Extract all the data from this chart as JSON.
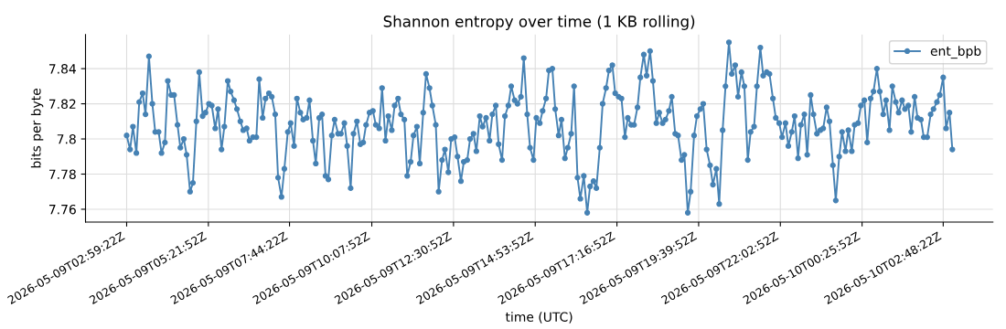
{
  "chart_data": {
    "type": "line",
    "title": "Shannon entropy over time (1 KB rolling)",
    "xlabel": "time (UTC)",
    "ylabel": "bits per byte",
    "x": [
      "2026-05-09T02:59",
      "2026-05-09T03:05",
      "2026-05-09T03:10",
      "2026-05-09T03:16",
      "2026-05-09T03:21",
      "2026-05-09T03:27",
      "2026-05-09T03:32",
      "2026-05-09T03:38",
      "2026-05-09T03:44",
      "2026-05-09T03:49",
      "2026-05-09T03:55",
      "2026-05-09T04:00",
      "2026-05-09T04:06",
      "2026-05-09T04:11",
      "2026-05-09T04:17",
      "2026-05-09T04:22",
      "2026-05-09T04:28",
      "2026-05-09T04:33",
      "2026-05-09T04:39",
      "2026-05-09T04:44",
      "2026-05-09T04:50",
      "2026-05-09T04:55",
      "2026-05-09T05:01",
      "2026-05-09T05:06",
      "2026-05-09T05:12",
      "2026-05-09T05:17",
      "2026-05-09T05:23",
      "2026-05-09T05:28",
      "2026-05-09T05:34",
      "2026-05-09T05:39",
      "2026-05-09T05:45",
      "2026-05-09T05:50",
      "2026-05-09T05:56",
      "2026-05-09T06:01",
      "2026-05-09T06:07",
      "2026-05-09T06:12",
      "2026-05-09T06:18",
      "2026-05-09T06:23",
      "2026-05-09T06:29",
      "2026-05-09T06:34",
      "2026-05-09T06:40",
      "2026-05-09T06:46",
      "2026-05-09T06:51",
      "2026-05-09T06:57",
      "2026-05-09T07:02",
      "2026-05-09T07:08",
      "2026-05-09T07:13",
      "2026-05-09T07:19",
      "2026-05-09T07:24",
      "2026-05-09T07:30",
      "2026-05-09T07:35",
      "2026-05-09T07:41",
      "2026-05-09T07:46",
      "2026-05-09T07:52",
      "2026-05-09T07:57",
      "2026-05-09T08:03",
      "2026-05-09T08:08",
      "2026-05-09T08:14",
      "2026-05-09T08:19",
      "2026-05-09T08:25",
      "2026-05-09T08:30",
      "2026-05-09T08:36",
      "2026-05-09T08:41",
      "2026-05-09T08:47",
      "2026-05-09T08:52",
      "2026-05-09T08:58",
      "2026-05-09T09:03",
      "2026-05-09T09:09",
      "2026-05-09T09:14",
      "2026-05-09T09:20",
      "2026-05-09T09:25",
      "2026-05-09T09:31",
      "2026-05-09T09:36",
      "2026-05-09T09:42",
      "2026-05-09T09:48",
      "2026-05-09T09:53",
      "2026-05-09T09:58",
      "2026-05-09T10:04",
      "2026-05-09T10:10",
      "2026-05-09T10:15",
      "2026-05-09T10:21",
      "2026-05-09T10:26",
      "2026-05-09T10:32",
      "2026-05-09T10:37",
      "2026-05-09T10:43",
      "2026-05-09T10:48",
      "2026-05-09T10:54",
      "2026-05-09T10:59",
      "2026-05-09T11:05",
      "2026-05-09T11:10",
      "2026-05-09T11:16",
      "2026-05-09T11:21",
      "2026-05-09T11:27",
      "2026-05-09T11:32",
      "2026-05-09T11:38",
      "2026-05-09T11:43",
      "2026-05-09T11:49",
      "2026-05-09T11:54",
      "2026-05-09T12:00",
      "2026-05-09T12:05",
      "2026-05-09T12:11",
      "2026-05-09T12:16",
      "2026-05-09T12:22",
      "2026-05-09T12:27",
      "2026-05-09T12:33",
      "2026-05-09T12:38",
      "2026-05-09T12:44",
      "2026-05-09T12:49",
      "2026-05-09T12:55",
      "2026-05-09T13:00",
      "2026-05-09T13:06",
      "2026-05-09T13:11",
      "2026-05-09T13:17",
      "2026-05-09T13:22",
      "2026-05-09T13:28",
      "2026-05-09T13:34",
      "2026-05-09T13:39",
      "2026-05-09T13:45",
      "2026-05-09T13:50",
      "2026-05-09T13:56",
      "2026-05-09T14:01",
      "2026-05-09T14:07",
      "2026-05-09T14:12",
      "2026-05-09T14:18",
      "2026-05-09T14:23",
      "2026-05-09T14:29",
      "2026-05-09T14:34",
      "2026-05-09T14:40",
      "2026-05-09T14:45",
      "2026-05-09T14:51",
      "2026-05-09T14:56",
      "2026-05-09T15:02",
      "2026-05-09T15:07",
      "2026-05-09T15:13",
      "2026-05-09T15:18",
      "2026-05-09T15:24",
      "2026-05-09T15:29",
      "2026-05-09T15:35",
      "2026-05-09T15:40",
      "2026-05-09T15:46",
      "2026-05-09T15:51",
      "2026-05-09T15:57",
      "2026-05-09T16:02",
      "2026-05-09T16:08",
      "2026-05-09T16:13",
      "2026-05-09T16:19",
      "2026-05-09T16:25",
      "2026-05-09T16:30",
      "2026-05-09T16:36",
      "2026-05-09T16:41",
      "2026-05-09T16:47",
      "2026-05-09T16:52",
      "2026-05-09T16:58",
      "2026-05-09T17:03",
      "2026-05-09T17:09",
      "2026-05-09T17:14",
      "2026-05-09T17:20",
      "2026-05-09T17:25",
      "2026-05-09T17:31",
      "2026-05-09T17:36",
      "2026-05-09T17:42",
      "2026-05-09T17:47",
      "2026-05-09T17:53",
      "2026-05-09T17:58",
      "2026-05-09T18:04",
      "2026-05-09T18:09",
      "2026-05-09T18:15",
      "2026-05-09T18:20",
      "2026-05-09T18:26",
      "2026-05-09T18:31",
      "2026-05-09T18:37",
      "2026-05-09T18:42",
      "2026-05-09T18:48",
      "2026-05-09T18:53",
      "2026-05-09T18:59",
      "2026-05-09T19:04",
      "2026-05-09T19:10",
      "2026-05-09T19:15",
      "2026-05-09T19:21",
      "2026-05-09T19:26",
      "2026-05-09T19:32",
      "2026-05-09T19:37",
      "2026-05-09T19:43",
      "2026-05-09T19:48",
      "2026-05-09T19:54",
      "2026-05-09T20:00",
      "2026-05-09T20:05",
      "2026-05-09T20:11",
      "2026-05-09T20:16",
      "2026-05-09T20:22",
      "2026-05-09T20:27",
      "2026-05-09T20:33",
      "2026-05-09T20:38",
      "2026-05-09T20:44",
      "2026-05-09T20:49",
      "2026-05-09T20:55",
      "2026-05-09T21:00",
      "2026-05-09T21:06",
      "2026-05-09T21:11",
      "2026-05-09T21:17",
      "2026-05-09T21:22",
      "2026-05-09T21:28",
      "2026-05-09T21:33",
      "2026-05-09T21:39",
      "2026-05-09T21:44",
      "2026-05-09T21:50",
      "2026-05-09T21:55",
      "2026-05-09T22:01",
      "2026-05-09T22:06",
      "2026-05-09T22:12",
      "2026-05-09T22:17",
      "2026-05-09T22:23",
      "2026-05-09T22:28",
      "2026-05-09T22:34",
      "2026-05-09T22:39",
      "2026-05-09T22:45",
      "2026-05-09T22:50",
      "2026-05-09T22:56",
      "2026-05-09T23:01",
      "2026-05-09T23:07",
      "2026-05-09T23:13",
      "2026-05-09T23:18",
      "2026-05-09T23:24",
      "2026-05-09T23:29",
      "2026-05-09T23:35",
      "2026-05-09T23:40",
      "2026-05-09T23:46",
      "2026-05-09T23:51",
      "2026-05-09T23:57",
      "2026-05-10T00:02",
      "2026-05-10T00:08",
      "2026-05-10T00:13",
      "2026-05-10T00:19",
      "2026-05-10T00:24",
      "2026-05-10T00:30",
      "2026-05-10T00:35",
      "2026-05-10T00:41",
      "2026-05-10T00:46",
      "2026-05-10T00:52",
      "2026-05-10T00:57",
      "2026-05-10T01:03",
      "2026-05-10T01:08",
      "2026-05-10T01:14",
      "2026-05-10T01:19",
      "2026-05-10T01:25",
      "2026-05-10T01:30",
      "2026-05-10T01:36",
      "2026-05-10T01:41",
      "2026-05-10T01:47",
      "2026-05-10T01:52",
      "2026-05-10T01:58",
      "2026-05-10T02:03",
      "2026-05-10T02:09",
      "2026-05-10T02:14",
      "2026-05-10T02:20",
      "2026-05-10T02:26",
      "2026-05-10T02:31",
      "2026-05-10T02:37",
      "2026-05-10T02:42",
      "2026-05-10T02:48",
      "2026-05-10T02:53",
      "2026-05-10T02:59",
      "2026-05-10T03:04"
    ],
    "series": [
      {
        "name": "ent_bpb",
        "color": "#4682b4",
        "values": [
          7.802,
          7.794,
          7.807,
          7.792,
          7.821,
          7.826,
          7.814,
          7.847,
          7.82,
          7.804,
          7.804,
          7.792,
          7.798,
          7.833,
          7.825,
          7.825,
          7.808,
          7.795,
          7.8,
          7.791,
          7.77,
          7.775,
          7.81,
          7.838,
          7.813,
          7.815,
          7.82,
          7.819,
          7.806,
          7.817,
          7.794,
          7.807,
          7.833,
          7.827,
          7.822,
          7.817,
          7.81,
          7.805,
          7.806,
          7.799,
          7.801,
          7.801,
          7.834,
          7.812,
          7.823,
          7.826,
          7.824,
          7.814,
          7.778,
          7.767,
          7.783,
          7.804,
          7.809,
          7.796,
          7.823,
          7.815,
          7.811,
          7.812,
          7.822,
          7.799,
          7.786,
          7.812,
          7.814,
          7.779,
          7.777,
          7.802,
          7.811,
          7.803,
          7.803,
          7.809,
          7.796,
          7.772,
          7.803,
          7.81,
          7.797,
          7.798,
          7.808,
          7.815,
          7.816,
          7.808,
          7.806,
          7.829,
          7.799,
          7.813,
          7.805,
          7.819,
          7.823,
          7.814,
          7.811,
          7.779,
          7.787,
          7.802,
          7.807,
          7.786,
          7.815,
          7.837,
          7.829,
          7.819,
          7.808,
          7.77,
          7.788,
          7.794,
          7.781,
          7.8,
          7.801,
          7.79,
          7.776,
          7.787,
          7.788,
          7.8,
          7.803,
          7.793,
          7.813,
          7.807,
          7.812,
          7.799,
          7.814,
          7.819,
          7.797,
          7.788,
          7.813,
          7.819,
          7.83,
          7.822,
          7.82,
          7.824,
          7.846,
          7.814,
          7.795,
          7.788,
          7.812,
          7.809,
          7.816,
          7.823,
          7.839,
          7.84,
          7.817,
          7.802,
          7.811,
          7.789,
          7.795,
          7.803,
          7.83,
          7.778,
          7.766,
          7.779,
          7.758,
          7.773,
          7.776,
          7.772,
          7.795,
          7.82,
          7.829,
          7.839,
          7.842,
          7.826,
          7.824,
          7.823,
          7.801,
          7.812,
          7.808,
          7.808,
          7.818,
          7.835,
          7.848,
          7.836,
          7.85,
          7.833,
          7.809,
          7.815,
          7.809,
          7.811,
          7.816,
          7.824,
          7.803,
          7.802,
          7.788,
          7.791,
          7.758,
          7.77,
          7.802,
          7.813,
          7.817,
          7.82,
          7.794,
          7.785,
          7.774,
          7.783,
          7.763,
          7.805,
          7.83,
          7.855,
          7.837,
          7.842,
          7.824,
          7.838,
          7.83,
          7.788,
          7.804,
          7.807,
          7.83,
          7.852,
          7.836,
          7.838,
          7.837,
          7.823,
          7.812,
          7.809,
          7.801,
          7.809,
          7.796,
          7.804,
          7.813,
          7.789,
          7.808,
          7.814,
          7.791,
          7.825,
          7.814,
          7.803,
          7.805,
          7.806,
          7.818,
          7.81,
          7.785,
          7.765,
          7.79,
          7.804,
          7.793,
          7.805,
          7.793,
          7.808,
          7.809,
          7.819,
          7.822,
          7.798,
          7.823,
          7.827,
          7.84,
          7.827,
          7.814,
          7.822,
          7.805,
          7.83,
          7.821,
          7.815,
          7.822,
          7.817,
          7.819,
          7.804,
          7.824,
          7.812,
          7.811,
          7.801,
          7.801,
          7.814,
          7.817,
          7.821,
          7.825,
          7.835,
          7.806,
          7.815,
          7.794
        ]
      }
    ],
    "xlim": [
      "2026-05-09T01:47",
      "2026-05-10T04:15"
    ],
    "xticks": [
      {
        "value": "2026-05-09T02:59",
        "label": "2026-05-09T02:59:22Z"
      },
      {
        "value": "2026-05-09T05:22",
        "label": "2026-05-09T05:21:52Z"
      },
      {
        "value": "2026-05-09T07:44",
        "label": "2026-05-09T07:44:22Z"
      },
      {
        "value": "2026-05-09T10:08",
        "label": "2026-05-09T10:07:52Z"
      },
      {
        "value": "2026-05-09T12:31",
        "label": "2026-05-09T12:30:52Z"
      },
      {
        "value": "2026-05-09T14:54",
        "label": "2026-05-09T14:53:52Z"
      },
      {
        "value": "2026-05-09T17:17",
        "label": "2026-05-09T17:16:52Z"
      },
      {
        "value": "2026-05-09T19:40",
        "label": "2026-05-09T19:39:52Z"
      },
      {
        "value": "2026-05-09T22:03",
        "label": "2026-05-09T22:02:52Z"
      },
      {
        "value": "2026-05-10T00:26",
        "label": "2026-05-10T00:25:52Z"
      },
      {
        "value": "2026-05-10T02:48",
        "label": "2026-05-10T02:48:22Z"
      }
    ],
    "ylim": [
      7.7527,
      7.8594
    ],
    "yticks": [
      7.76,
      7.78,
      7.8,
      7.82,
      7.84
    ],
    "grid": true,
    "legend": "top right",
    "marker": "circle",
    "line_style": "solid"
  }
}
